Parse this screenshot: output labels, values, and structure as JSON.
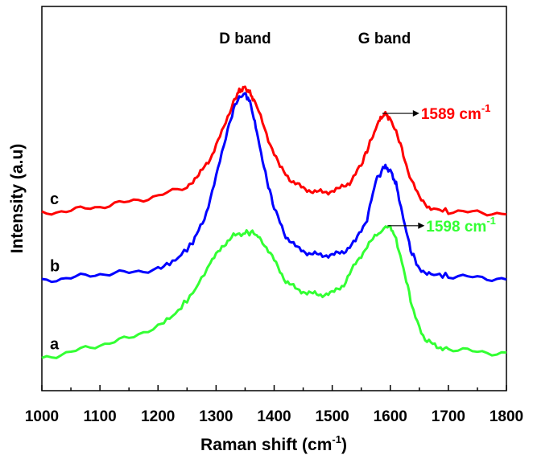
{
  "chart_data": {
    "type": "line",
    "xlabel": "Raman shift (cm",
    "xlabel_sup": "-1",
    "xlabel_close": ")",
    "ylabel": "Intensity (a.u)",
    "xlim": [
      1000,
      1800
    ],
    "ylim": [
      0,
      1
    ],
    "x_ticks": [
      1000,
      1100,
      1200,
      1300,
      1400,
      1500,
      1600,
      1700,
      1800
    ],
    "y_ticks_labeled": false,
    "grid": false,
    "annotations": [
      {
        "text": "D band",
        "x": 1350,
        "color": "#000000"
      },
      {
        "text": "G band",
        "x": 1590,
        "color": "#000000"
      },
      {
        "text": "1589 cm",
        "sup": "-1",
        "x": 1589,
        "series": "c",
        "color": "#ff0000"
      },
      {
        "text": "1598 cm",
        "sup": "-1",
        "x": 1598,
        "series": "a",
        "color": "#33ff33"
      }
    ],
    "series": [
      {
        "name": "c",
        "color": "#ff0000",
        "x": [
          1000,
          1050,
          1100,
          1150,
          1200,
          1250,
          1270,
          1290,
          1310,
          1330,
          1340,
          1350,
          1360,
          1370,
          1390,
          1410,
          1430,
          1450,
          1470,
          1490,
          1510,
          1530,
          1550,
          1565,
          1580,
          1590,
          1600,
          1615,
          1630,
          1650,
          1670,
          1700,
          1750,
          1800
        ],
        "y": [
          0.475,
          0.485,
          0.495,
          0.51,
          0.525,
          0.555,
          0.585,
          0.635,
          0.71,
          0.8,
          0.83,
          0.84,
          0.82,
          0.785,
          0.69,
          0.61,
          0.57,
          0.548,
          0.538,
          0.537,
          0.545,
          0.565,
          0.615,
          0.68,
          0.74,
          0.765,
          0.75,
          0.69,
          0.6,
          0.52,
          0.49,
          0.482,
          0.478,
          0.475
        ]
      },
      {
        "name": "b",
        "color": "#0000ff",
        "x": [
          1000,
          1050,
          1100,
          1150,
          1200,
          1230,
          1260,
          1280,
          1300,
          1320,
          1335,
          1350,
          1360,
          1370,
          1385,
          1400,
          1420,
          1440,
          1460,
          1480,
          1500,
          1520,
          1540,
          1560,
          1575,
          1590,
          1600,
          1610,
          1620,
          1635,
          1650,
          1670,
          1700,
          1750,
          1800
        ],
        "y": [
          0.28,
          0.29,
          0.3,
          0.305,
          0.315,
          0.34,
          0.39,
          0.46,
          0.58,
          0.72,
          0.8,
          0.825,
          0.79,
          0.71,
          0.59,
          0.49,
          0.41,
          0.375,
          0.36,
          0.355,
          0.355,
          0.365,
          0.395,
          0.46,
          0.57,
          0.61,
          0.6,
          0.56,
          0.48,
          0.37,
          0.315,
          0.3,
          0.295,
          0.29,
          0.285
        ]
      },
      {
        "name": "a",
        "color": "#33ff33",
        "x": [
          1000,
          1050,
          1100,
          1150,
          1200,
          1230,
          1260,
          1290,
          1310,
          1330,
          1350,
          1365,
          1380,
          1400,
          1420,
          1440,
          1460,
          1480,
          1500,
          1520,
          1540,
          1560,
          1580,
          1598,
          1610,
          1625,
          1640,
          1660,
          1680,
          1700,
          1750,
          1800
        ],
        "y": [
          0.055,
          0.075,
          0.095,
          0.115,
          0.15,
          0.185,
          0.245,
          0.33,
          0.38,
          0.41,
          0.42,
          0.42,
          0.395,
          0.34,
          0.28,
          0.255,
          0.245,
          0.24,
          0.245,
          0.27,
          0.33,
          0.38,
          0.42,
          0.44,
          0.4,
          0.3,
          0.19,
          0.11,
          0.09,
          0.085,
          0.075,
          0.07
        ]
      }
    ]
  }
}
